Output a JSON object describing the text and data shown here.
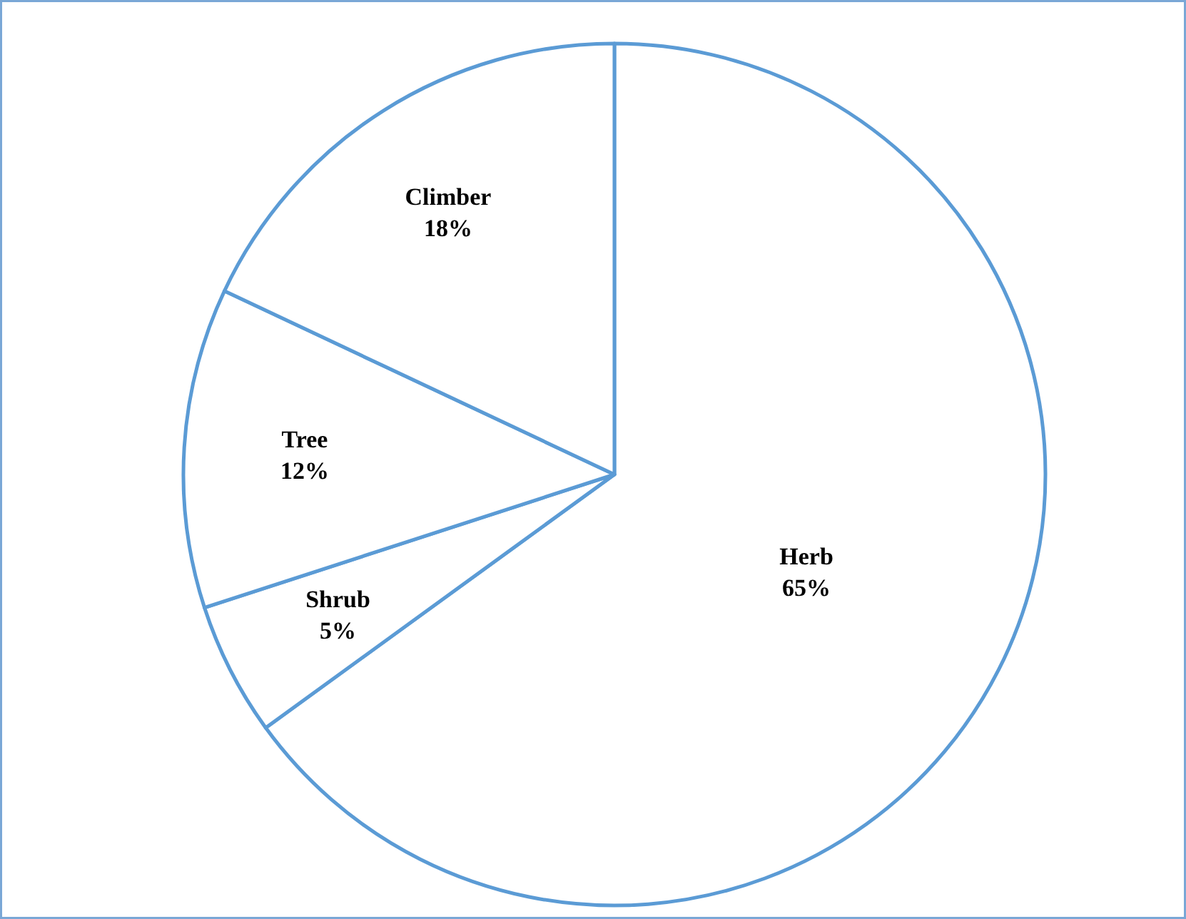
{
  "chart_data": {
    "type": "pie",
    "categories": [
      "Herb",
      "Shrub",
      "Tree",
      "Climber"
    ],
    "values": [
      65,
      5,
      12,
      18
    ],
    "value_labels": [
      "65%",
      "5%",
      "12%",
      "18%"
    ],
    "colors": [
      "#ffffff",
      "#ffffff",
      "#ffffff",
      "#ffffff"
    ]
  }
}
